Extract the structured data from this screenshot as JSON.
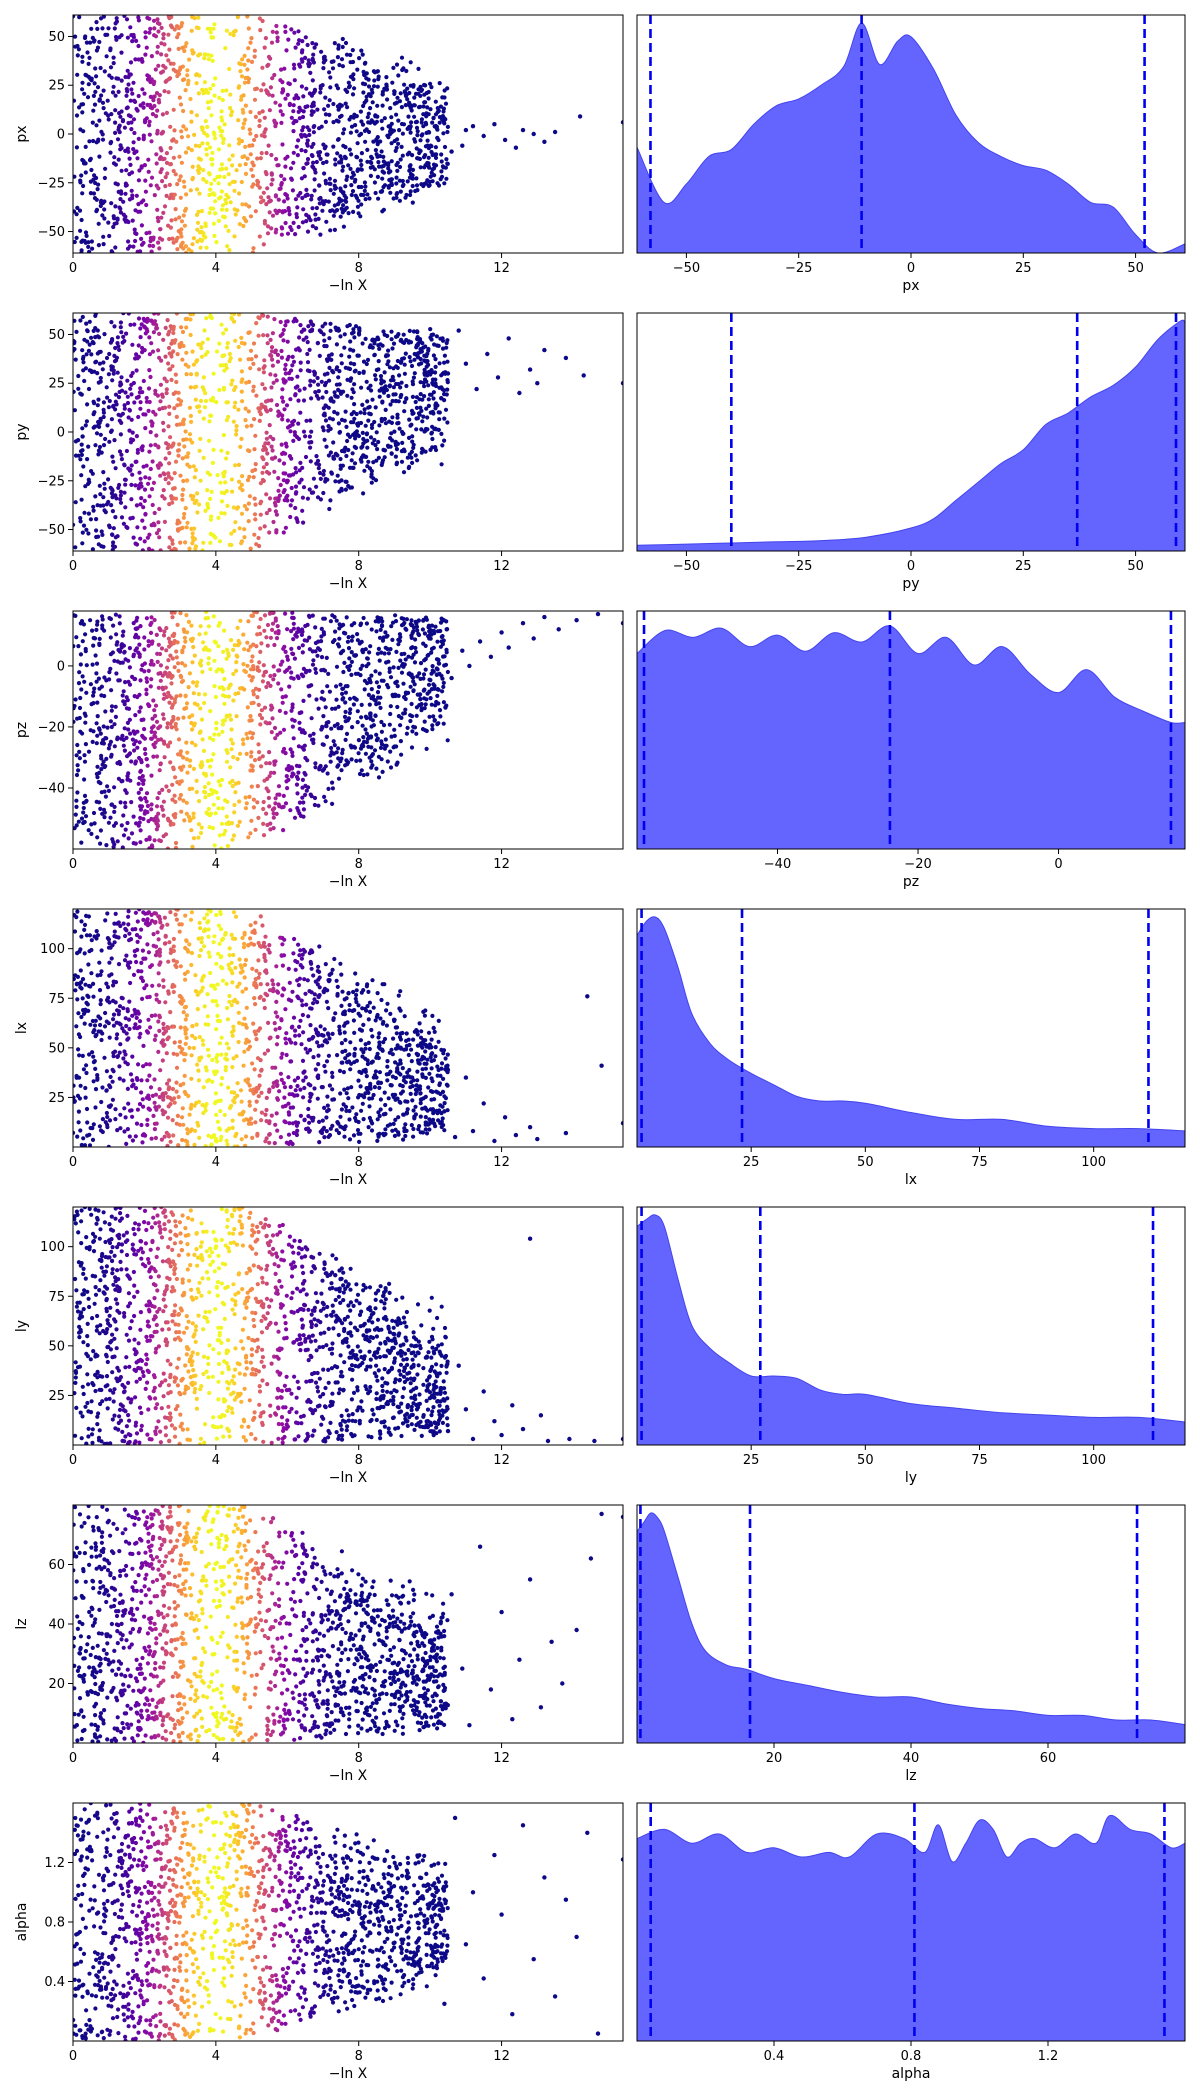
{
  "figure": {
    "scatter_colormap": "plasma",
    "hist_fill": "#6464ff",
    "hist_edge": "#4444ee",
    "quantile_line_color": "#0000ee",
    "axes_color": "#000000"
  },
  "chart_data": [
    {
      "type": "scatter",
      "param": "px",
      "xlabel": "−ln X",
      "ylabel": "px",
      "xlim": [
        0,
        15.4
      ],
      "ylim": [
        -61,
        61
      ],
      "xticks": [
        0,
        4,
        8,
        12
      ],
      "xtick_labels": [
        "0",
        "4",
        "8",
        "12"
      ],
      "yticks": [
        -50,
        -25,
        0,
        25,
        50
      ],
      "ytick_labels": [
        "−50",
        "−25",
        "0",
        "25",
        "50"
      ],
      "color_encoding": "likelihood weight (plasma), peak near −ln X ≈ 4",
      "points": [
        [
          14.2,
          9
        ],
        [
          15.4,
          6
        ],
        [
          13.2,
          -4
        ],
        [
          12.9,
          0
        ],
        [
          12.6,
          2
        ],
        [
          13.5,
          1
        ],
        [
          12.1,
          -3
        ],
        [
          11.8,
          5
        ],
        [
          11.5,
          -1
        ],
        [
          12.4,
          -7
        ],
        [
          11.2,
          4
        ],
        [
          10.9,
          -6
        ],
        [
          11.0,
          2
        ],
        [
          10.6,
          -9
        ],
        [
          10.4,
          8
        ],
        [
          10.2,
          -2
        ]
      ]
    },
    {
      "type": "area",
      "param": "px",
      "xlabel": "px",
      "xlim": [
        -61,
        61
      ],
      "xticks": [
        -50,
        -25,
        0,
        25,
        50
      ],
      "xtick_labels": [
        "−50",
        "−25",
        "0",
        "25",
        "50"
      ],
      "quantiles": [
        -58,
        -11,
        52
      ],
      "x": [
        -61,
        -55,
        -50,
        -45,
        -40,
        -35,
        -30,
        -25,
        -20,
        -15,
        -11,
        -7,
        -3,
        0,
        5,
        10,
        15,
        20,
        25,
        30,
        35,
        40,
        45,
        50,
        55,
        61
      ],
      "density": [
        0.46,
        0.22,
        0.3,
        0.42,
        0.45,
        0.56,
        0.64,
        0.67,
        0.73,
        0.81,
        1.0,
        0.82,
        0.92,
        0.94,
        0.8,
        0.6,
        0.48,
        0.42,
        0.38,
        0.36,
        0.3,
        0.22,
        0.2,
        0.08,
        0.0,
        0.04
      ]
    },
    {
      "type": "scatter",
      "param": "py",
      "xlabel": "−ln X",
      "ylabel": "py",
      "xlim": [
        0,
        15.4
      ],
      "ylim": [
        -61,
        61
      ],
      "xticks": [
        0,
        4,
        8,
        12
      ],
      "xtick_labels": [
        "0",
        "4",
        "8",
        "12"
      ],
      "yticks": [
        -50,
        -25,
        0,
        25,
        50
      ],
      "ytick_labels": [
        "−50",
        "−25",
        "0",
        "25",
        "50"
      ],
      "color_encoding": "likelihood weight (plasma), peak near −ln X ≈ 4",
      "points": [
        [
          15.4,
          25
        ],
        [
          14.3,
          29
        ],
        [
          13.8,
          38
        ],
        [
          13.2,
          42
        ],
        [
          12.8,
          32
        ],
        [
          12.5,
          20
        ],
        [
          13.0,
          25
        ],
        [
          12.2,
          48
        ],
        [
          11.9,
          28
        ],
        [
          11.6,
          40
        ],
        [
          11.3,
          22
        ],
        [
          11.0,
          35
        ],
        [
          10.8,
          52
        ],
        [
          10.5,
          30
        ]
      ]
    },
    {
      "type": "area",
      "param": "py",
      "xlabel": "py",
      "xlim": [
        -61,
        61
      ],
      "xticks": [
        -50,
        -25,
        0,
        25,
        50
      ],
      "xtick_labels": [
        "−50",
        "−25",
        "0",
        "25",
        "50"
      ],
      "quantiles": [
        -40,
        37,
        59
      ],
      "x": [
        -61,
        -50,
        -40,
        -30,
        -20,
        -10,
        0,
        5,
        10,
        15,
        20,
        25,
        30,
        35,
        40,
        45,
        50,
        55,
        60,
        61
      ],
      "density": [
        0.025,
        0.03,
        0.035,
        0.04,
        0.045,
        0.06,
        0.1,
        0.14,
        0.22,
        0.3,
        0.38,
        0.44,
        0.55,
        0.6,
        0.67,
        0.72,
        0.8,
        0.92,
        1.0,
        0.99
      ]
    },
    {
      "type": "scatter",
      "param": "pz",
      "xlabel": "−ln X",
      "ylabel": "pz",
      "xlim": [
        0,
        15.4
      ],
      "ylim": [
        -60,
        18
      ],
      "xticks": [
        0,
        4,
        8,
        12
      ],
      "xtick_labels": [
        "0",
        "4",
        "8",
        "12"
      ],
      "yticks": [
        -40,
        -20,
        0
      ],
      "ytick_labels": [
        "−40",
        "−20",
        "0"
      ],
      "color_encoding": "likelihood weight (plasma), peak near −ln X ≈ 4",
      "points": [
        [
          15.4,
          14
        ],
        [
          14.7,
          17
        ],
        [
          14.1,
          15
        ],
        [
          13.6,
          12
        ],
        [
          13.2,
          16
        ],
        [
          12.9,
          9
        ],
        [
          12.6,
          14
        ],
        [
          12.2,
          6
        ],
        [
          12.0,
          11
        ],
        [
          11.7,
          3
        ],
        [
          11.4,
          8
        ],
        [
          11.1,
          0
        ],
        [
          10.9,
          5
        ],
        [
          10.6,
          -4
        ]
      ]
    },
    {
      "type": "area",
      "param": "pz",
      "xlabel": "pz",
      "xlim": [
        -60,
        18
      ],
      "xticks": [
        -40,
        -20,
        0
      ],
      "xtick_labels": [
        "−40",
        "−20",
        "0"
      ],
      "quantiles": [
        -59,
        -24,
        16
      ],
      "x": [
        -60,
        -56,
        -52,
        -48,
        -44,
        -40,
        -36,
        -32,
        -28,
        -24,
        -20,
        -16,
        -12,
        -8,
        -4,
        0,
        4,
        8,
        12,
        16,
        18
      ],
      "density": [
        0.85,
        0.95,
        0.92,
        0.96,
        0.88,
        0.93,
        0.86,
        0.94,
        0.9,
        0.97,
        0.85,
        0.92,
        0.8,
        0.88,
        0.76,
        0.68,
        0.78,
        0.66,
        0.6,
        0.55,
        0.55
      ]
    },
    {
      "type": "scatter",
      "param": "lx",
      "xlabel": "−ln X",
      "ylabel": "lx",
      "xlim": [
        0,
        15.4
      ],
      "ylim": [
        0,
        120
      ],
      "xticks": [
        0,
        4,
        8,
        12
      ],
      "xtick_labels": [
        "0",
        "4",
        "8",
        "12"
      ],
      "yticks": [
        25,
        50,
        75,
        100
      ],
      "ytick_labels": [
        "25",
        "50",
        "75",
        "100"
      ],
      "color_encoding": "likelihood weight (plasma), peak near −ln X ≈ 4",
      "points": [
        [
          15.4,
          12
        ],
        [
          14.8,
          41
        ],
        [
          14.4,
          76
        ],
        [
          13.8,
          7
        ],
        [
          13.0,
          4
        ],
        [
          12.8,
          10
        ],
        [
          12.4,
          6
        ],
        [
          12.1,
          15
        ],
        [
          11.8,
          3
        ],
        [
          11.5,
          22
        ],
        [
          11.2,
          8
        ],
        [
          11.0,
          35
        ],
        [
          10.7,
          5
        ],
        [
          10.4,
          18
        ],
        [
          10.1,
          60
        ],
        [
          9.9,
          12
        ]
      ]
    },
    {
      "type": "area",
      "param": "lx",
      "xlabel": "lx",
      "xlim": [
        0,
        120
      ],
      "xticks": [
        25,
        50,
        75,
        100
      ],
      "xtick_labels": [
        "25",
        "50",
        "75",
        "100"
      ],
      "quantiles": [
        1,
        23,
        112
      ],
      "x": [
        0,
        2,
        4,
        6,
        9,
        12,
        16,
        20,
        25,
        30,
        35,
        40,
        45,
        50,
        60,
        70,
        80,
        90,
        100,
        110,
        120
      ],
      "density": [
        0.92,
        0.98,
        1.0,
        0.95,
        0.78,
        0.58,
        0.45,
        0.38,
        0.32,
        0.27,
        0.22,
        0.2,
        0.2,
        0.19,
        0.15,
        0.12,
        0.12,
        0.09,
        0.08,
        0.08,
        0.07
      ]
    },
    {
      "type": "scatter",
      "param": "ly",
      "xlabel": "−ln X",
      "ylabel": "ly",
      "xlim": [
        0,
        15.4
      ],
      "ylim": [
        0,
        120
      ],
      "xticks": [
        0,
        4,
        8,
        12
      ],
      "xtick_labels": [
        "0",
        "4",
        "8",
        "12"
      ],
      "yticks": [
        25,
        50,
        75,
        100
      ],
      "ytick_labels": [
        "25",
        "50",
        "75",
        "100"
      ],
      "color_encoding": "likelihood weight (plasma), peak near −ln X ≈ 4",
      "points": [
        [
          15.4,
          3
        ],
        [
          14.6,
          2
        ],
        [
          13.9,
          3
        ],
        [
          13.3,
          2
        ],
        [
          13.1,
          15
        ],
        [
          12.8,
          104
        ],
        [
          12.6,
          8
        ],
        [
          12.3,
          20
        ],
        [
          12.0,
          5
        ],
        [
          11.8,
          12
        ],
        [
          11.5,
          27
        ],
        [
          11.2,
          3
        ],
        [
          11.0,
          18
        ],
        [
          10.8,
          40
        ],
        [
          10.5,
          7
        ],
        [
          10.2,
          22
        ],
        [
          9.9,
          10
        ]
      ]
    },
    {
      "type": "area",
      "param": "ly",
      "xlabel": "ly",
      "xlim": [
        0,
        120
      ],
      "xticks": [
        25,
        50,
        75,
        100
      ],
      "xtick_labels": [
        "25",
        "50",
        "75",
        "100"
      ],
      "quantiles": [
        1,
        27,
        113
      ],
      "x": [
        0,
        2,
        4,
        6,
        9,
        12,
        16,
        20,
        25,
        30,
        35,
        40,
        45,
        50,
        60,
        70,
        80,
        90,
        100,
        110,
        120
      ],
      "density": [
        0.95,
        0.98,
        1.0,
        0.95,
        0.72,
        0.52,
        0.42,
        0.36,
        0.3,
        0.3,
        0.29,
        0.24,
        0.22,
        0.22,
        0.18,
        0.16,
        0.14,
        0.13,
        0.12,
        0.12,
        0.1
      ]
    },
    {
      "type": "scatter",
      "param": "lz",
      "xlabel": "−ln X",
      "ylabel": "lz",
      "xlim": [
        0,
        15.4
      ],
      "ylim": [
        0,
        80
      ],
      "xticks": [
        0,
        4,
        8,
        12
      ],
      "xtick_labels": [
        "0",
        "4",
        "8",
        "12"
      ],
      "yticks": [
        20,
        40,
        60
      ],
      "ytick_labels": [
        "20",
        "40",
        "60"
      ],
      "color_encoding": "likelihood weight (plasma), peak near −ln X ≈ 4",
      "points": [
        [
          15.4,
          76
        ],
        [
          14.8,
          77
        ],
        [
          14.5,
          62
        ],
        [
          14.1,
          38
        ],
        [
          13.7,
          20
        ],
        [
          13.4,
          34
        ],
        [
          13.1,
          12
        ],
        [
          12.8,
          55
        ],
        [
          12.5,
          28
        ],
        [
          12.3,
          8
        ],
        [
          12.0,
          44
        ],
        [
          11.7,
          18
        ],
        [
          11.4,
          66
        ],
        [
          11.1,
          6
        ],
        [
          10.9,
          25
        ],
        [
          10.6,
          50
        ],
        [
          10.3,
          14
        ]
      ]
    },
    {
      "type": "area",
      "param": "lz",
      "xlabel": "lz",
      "xlim": [
        0,
        80
      ],
      "xticks": [
        20,
        40,
        60
      ],
      "xtick_labels": [
        "20",
        "40",
        "60"
      ],
      "quantiles": [
        0.5,
        16.5,
        73
      ],
      "x": [
        0,
        1,
        2,
        3,
        4,
        6,
        8,
        10,
        13,
        16,
        20,
        25,
        30,
        35,
        40,
        45,
        50,
        55,
        60,
        65,
        70,
        75,
        80
      ],
      "density": [
        0.92,
        0.96,
        1.0,
        0.98,
        0.92,
        0.72,
        0.52,
        0.4,
        0.34,
        0.32,
        0.28,
        0.25,
        0.22,
        0.2,
        0.2,
        0.17,
        0.15,
        0.14,
        0.12,
        0.12,
        0.1,
        0.1,
        0.08
      ]
    },
    {
      "type": "scatter",
      "param": "alpha",
      "xlabel": "−ln X",
      "ylabel": "alpha",
      "xlim": [
        0,
        15.4
      ],
      "ylim": [
        0,
        1.6
      ],
      "xticks": [
        0,
        4,
        8,
        12
      ],
      "xtick_labels": [
        "0",
        "4",
        "8",
        "12"
      ],
      "yticks": [
        0.4,
        0.8,
        1.2
      ],
      "ytick_labels": [
        "0.4",
        "0.8",
        "1.2"
      ],
      "color_encoding": "likelihood weight (plasma), peak near −ln X ≈ 4",
      "points": [
        [
          15.4,
          1.22
        ],
        [
          14.7,
          0.05
        ],
        [
          14.4,
          1.4
        ],
        [
          14.1,
          0.7
        ],
        [
          13.8,
          0.95
        ],
        [
          13.5,
          0.3
        ],
        [
          13.2,
          1.1
        ],
        [
          12.9,
          0.55
        ],
        [
          12.6,
          1.45
        ],
        [
          12.3,
          0.18
        ],
        [
          12.0,
          0.85
        ],
        [
          11.8,
          1.25
        ],
        [
          11.5,
          0.42
        ],
        [
          11.2,
          1.0
        ],
        [
          11.0,
          0.65
        ],
        [
          10.7,
          1.5
        ],
        [
          10.4,
          0.25
        ]
      ]
    },
    {
      "type": "area",
      "param": "alpha",
      "xlabel": "alpha",
      "xlim": [
        0,
        1.6
      ],
      "xticks": [
        0.4,
        0.8,
        1.2
      ],
      "xtick_labels": [
        "0.4",
        "0.8",
        "1.2"
      ],
      "quantiles": [
        0.04,
        0.81,
        1.54
      ],
      "x": [
        0,
        0.08,
        0.16,
        0.24,
        0.32,
        0.4,
        0.48,
        0.56,
        0.62,
        0.7,
        0.78,
        0.84,
        0.88,
        0.92,
        0.96,
        1.0,
        1.04,
        1.08,
        1.12,
        1.16,
        1.22,
        1.28,
        1.34,
        1.38,
        1.44,
        1.5,
        1.56,
        1.6
      ],
      "density": [
        0.88,
        0.92,
        0.86,
        0.9,
        0.82,
        0.84,
        0.8,
        0.82,
        0.8,
        0.9,
        0.88,
        0.82,
        0.94,
        0.78,
        0.86,
        0.96,
        0.92,
        0.8,
        0.86,
        0.88,
        0.84,
        0.9,
        0.86,
        0.98,
        0.92,
        0.9,
        0.84,
        0.86
      ]
    }
  ]
}
